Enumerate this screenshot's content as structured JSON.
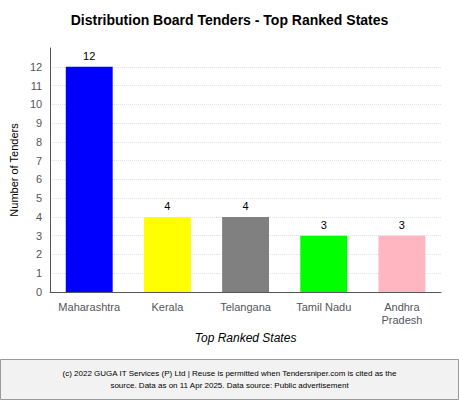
{
  "chart_data": {
    "type": "bar",
    "title": "Distribution Board Tenders - Top Ranked States",
    "xlabel": "Top Ranked States",
    "ylabel": "Number of Tenders",
    "categories": [
      "Maharashtra",
      "Kerala",
      "Telangana",
      "Tamil Nadu",
      "Andhra\nPradesh"
    ],
    "values": [
      12,
      4,
      4,
      3,
      3
    ],
    "colors": [
      "#0000FF",
      "#FFFF00",
      "#808080",
      "#00FF00",
      "#FFB6C1"
    ],
    "ylim": [
      0,
      13
    ],
    "yticks": [
      0,
      1,
      2,
      3,
      4,
      5,
      6,
      7,
      8,
      9,
      10,
      11,
      12
    ],
    "grid": true,
    "data_labels": true,
    "annotations": [
      "(c) 2022 GUGA IT Services (P) Ltd | Reuse is permitted when Tendersniper.com is cited as the",
      "source. Data as on 11 Apr 2025. Data source: Public advertisement"
    ]
  }
}
